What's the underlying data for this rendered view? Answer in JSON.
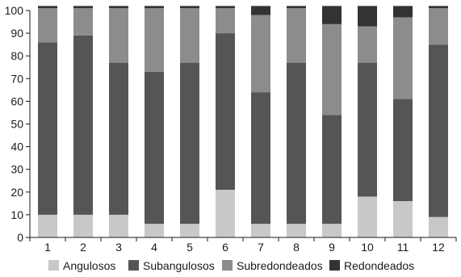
{
  "chart_data": {
    "type": "bar",
    "stacked": true,
    "categories": [
      "1",
      "2",
      "3",
      "4",
      "5",
      "6",
      "7",
      "8",
      "9",
      "10",
      "11",
      "12"
    ],
    "series": [
      {
        "name": "Angulosos",
        "color": "#c8c8c8",
        "values": [
          10,
          10,
          10,
          6,
          6,
          21,
          6,
          6,
          6,
          18,
          16,
          9
        ]
      },
      {
        "name": "Subangulosos",
        "color": "#555555",
        "values": [
          76,
          79,
          67,
          67,
          71,
          69,
          58,
          71,
          48,
          59,
          45,
          76
        ]
      },
      {
        "name": "Subredondeados",
        "color": "#8c8c8c",
        "values": [
          15,
          12,
          24,
          28,
          24,
          11,
          34,
          24,
          40,
          16,
          36,
          16
        ]
      },
      {
        "name": "Redondeados",
        "color": "#333333",
        "values": [
          1,
          1,
          1,
          1,
          1,
          1,
          4,
          1,
          8,
          9,
          5,
          1
        ]
      }
    ],
    "y_ticks": [
      "0",
      "10",
      "20",
      "30",
      "40",
      "50",
      "60",
      "70",
      "80",
      "90",
      "100"
    ],
    "ylim": [
      0,
      100
    ],
    "grid": false,
    "legend_position": "bottom"
  }
}
